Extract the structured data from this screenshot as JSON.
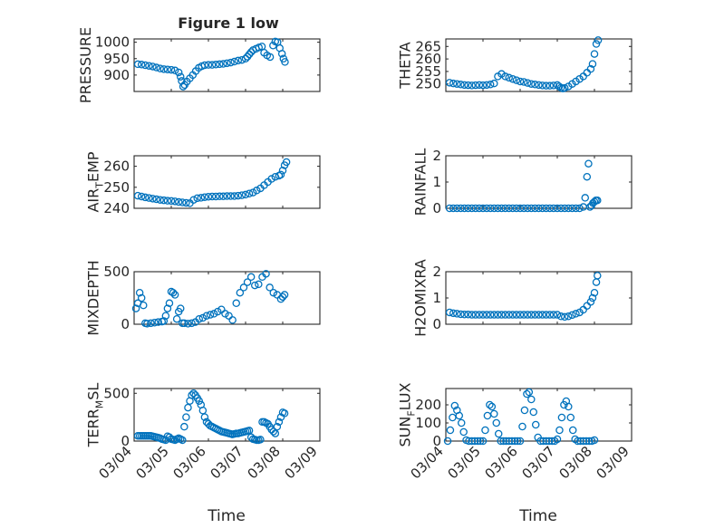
{
  "figure": {
    "title": "Figure 1 low",
    "xlabel": "Time",
    "marker_color": "#0072bd"
  },
  "chart_data": [
    {
      "type": "scatter",
      "name": "pressure",
      "ylabel": "PRESSURE",
      "ylim": [
        850,
        1010
      ],
      "yticks": [
        900,
        950,
        1000
      ],
      "xlim": [
        0,
        5
      ],
      "xticks": [
        0,
        1,
        2,
        3,
        4,
        5
      ],
      "xticklabels": [
        "03/04",
        "03/05",
        "03/06",
        "03/07",
        "03/08",
        "03/09"
      ],
      "show_xticklabels": false,
      "grid": true,
      "x": [
        0.1,
        0.2,
        0.3,
        0.4,
        0.5,
        0.6,
        0.7,
        0.8,
        0.9,
        1.0,
        1.1,
        1.2,
        1.25,
        1.28,
        1.32,
        1.36,
        1.42,
        1.5,
        1.58,
        1.66,
        1.74,
        1.82,
        1.9,
        2.0,
        2.1,
        2.2,
        2.3,
        2.4,
        2.5,
        2.6,
        2.7,
        2.8,
        2.9,
        3.0,
        3.05,
        3.1,
        3.15,
        3.2,
        3.28,
        3.36,
        3.44,
        3.5,
        3.58,
        3.66,
        3.74,
        3.8,
        3.86,
        3.92,
        3.98,
        4.02,
        4.06
      ],
      "y": [
        933,
        932,
        930,
        928,
        926,
        923,
        920,
        918,
        917,
        916,
        914,
        908,
        895,
        882,
        865,
        870,
        880,
        890,
        900,
        912,
        922,
        927,
        930,
        931,
        931,
        932,
        933,
        934,
        936,
        938,
        941,
        944,
        946,
        950,
        956,
        963,
        970,
        976,
        980,
        984,
        987,
        968,
        960,
        955,
        990,
        1002,
        1000,
        982,
        965,
        950,
        940
      ]
    },
    {
      "type": "scatter",
      "name": "theta",
      "ylabel": "THETA",
      "ylim": [
        247,
        268
      ],
      "yticks": [
        250,
        255,
        260,
        265
      ],
      "xlim": [
        0,
        5
      ],
      "xticks": [
        0,
        1,
        2,
        3,
        4,
        5
      ],
      "xticklabels": [
        "03/04",
        "03/05",
        "03/06",
        "03/07",
        "03/08",
        "03/09"
      ],
      "show_xticklabels": false,
      "grid": true,
      "x": [
        0.1,
        0.2,
        0.3,
        0.4,
        0.5,
        0.6,
        0.7,
        0.8,
        0.9,
        1.0,
        1.1,
        1.2,
        1.3,
        1.4,
        1.5,
        1.6,
        1.7,
        1.8,
        1.9,
        2.0,
        2.1,
        2.2,
        2.3,
        2.4,
        2.5,
        2.6,
        2.7,
        2.8,
        2.9,
        3.0,
        3.05,
        3.1,
        3.15,
        3.2,
        3.3,
        3.4,
        3.5,
        3.6,
        3.7,
        3.8,
        3.9,
        3.95,
        4.0,
        4.05,
        4.1
      ],
      "y": [
        250.5,
        250.2,
        250.0,
        249.8,
        249.6,
        249.5,
        249.4,
        249.5,
        249.6,
        249.5,
        249.6,
        249.8,
        250.2,
        253.0,
        254.0,
        253.0,
        252.5,
        252.0,
        251.5,
        251.0,
        250.8,
        250.4,
        250.0,
        249.8,
        249.6,
        249.4,
        249.3,
        249.3,
        249.4,
        249.6,
        249.0,
        248.5,
        248.2,
        248.4,
        249.0,
        250.0,
        251.0,
        252.0,
        253.0,
        254.5,
        256.0,
        258.0,
        262.0,
        266.0,
        267.5
      ]
    },
    {
      "type": "scatter",
      "name": "air_temp",
      "ylabel": "AIR",
      "ylabel_subscript": "T",
      "ylabel_suffix": "EMP",
      "ylim": [
        240,
        265
      ],
      "yticks": [
        240,
        250,
        260
      ],
      "xlim": [
        0,
        5
      ],
      "xticks": [
        0,
        1,
        2,
        3,
        4,
        5
      ],
      "xticklabels": [
        "03/04",
        "03/05",
        "03/06",
        "03/07",
        "03/08",
        "03/09"
      ],
      "show_xticklabels": false,
      "grid": true,
      "x": [
        0.1,
        0.2,
        0.3,
        0.4,
        0.5,
        0.6,
        0.7,
        0.8,
        0.9,
        1.0,
        1.1,
        1.2,
        1.3,
        1.4,
        1.5,
        1.6,
        1.7,
        1.8,
        1.9,
        2.0,
        2.1,
        2.2,
        2.3,
        2.4,
        2.5,
        2.6,
        2.7,
        2.8,
        2.9,
        3.0,
        3.1,
        3.2,
        3.3,
        3.4,
        3.5,
        3.6,
        3.7,
        3.8,
        3.9,
        3.95,
        4.0,
        4.05,
        4.1
      ],
      "y": [
        246.0,
        245.6,
        245.2,
        244.9,
        244.6,
        244.3,
        244.0,
        243.8,
        243.6,
        243.5,
        243.3,
        243.0,
        242.8,
        242.6,
        242.4,
        244.0,
        244.8,
        245.0,
        245.3,
        245.5,
        245.6,
        245.6,
        245.7,
        245.7,
        245.8,
        245.8,
        245.8,
        246.0,
        246.2,
        246.5,
        247.0,
        247.5,
        248.5,
        249.5,
        251.0,
        252.5,
        254.0,
        255.0,
        255.5,
        256.0,
        258.0,
        260.5,
        262.0
      ]
    },
    {
      "type": "scatter",
      "name": "rainfall",
      "ylabel": "RAINFALL",
      "ylim": [
        0,
        2
      ],
      "yticks": [
        0,
        1,
        2
      ],
      "xlim": [
        0,
        5
      ],
      "xticks": [
        0,
        1,
        2,
        3,
        4,
        5
      ],
      "xticklabels": [
        "03/04",
        "03/05",
        "03/06",
        "03/07",
        "03/08",
        "03/09"
      ],
      "show_xticklabels": false,
      "grid": true,
      "x": [
        0.1,
        0.2,
        0.3,
        0.4,
        0.5,
        0.6,
        0.7,
        0.8,
        0.9,
        1.0,
        1.1,
        1.2,
        1.3,
        1.4,
        1.5,
        1.6,
        1.7,
        1.8,
        1.9,
        2.0,
        2.1,
        2.2,
        2.3,
        2.4,
        2.5,
        2.6,
        2.7,
        2.8,
        2.9,
        3.0,
        3.1,
        3.2,
        3.3,
        3.4,
        3.5,
        3.6,
        3.7,
        3.75,
        3.8,
        3.84,
        3.88,
        3.92,
        3.96,
        4.0,
        4.04,
        4.08
      ],
      "y": [
        0,
        0,
        0,
        0,
        0,
        0,
        0,
        0,
        0,
        0,
        0,
        0,
        0,
        0,
        0,
        0,
        0,
        0,
        0,
        0,
        0,
        0,
        0,
        0,
        0,
        0,
        0,
        0,
        0,
        0,
        0,
        0,
        0,
        0,
        0,
        0,
        0.05,
        0.4,
        1.2,
        1.7,
        0.05,
        0.1,
        0.2,
        0.25,
        0.3,
        0.3
      ]
    },
    {
      "type": "scatter",
      "name": "mixdepth",
      "ylabel": "MIXDEPTH",
      "ylim": [
        0,
        500
      ],
      "yticks": [
        0,
        500
      ],
      "xlim": [
        0,
        5
      ],
      "xticks": [
        0,
        1,
        2,
        3,
        4,
        5
      ],
      "xticklabels": [
        "03/04",
        "03/05",
        "03/06",
        "03/07",
        "03/08",
        "03/09"
      ],
      "show_xticklabels": false,
      "grid": true,
      "x": [
        0.05,
        0.1,
        0.15,
        0.2,
        0.25,
        0.3,
        0.35,
        0.45,
        0.55,
        0.65,
        0.75,
        0.8,
        0.85,
        0.9,
        0.95,
        1.0,
        1.05,
        1.1,
        1.15,
        1.2,
        1.25,
        1.3,
        1.35,
        1.45,
        1.55,
        1.65,
        1.75,
        1.85,
        1.95,
        2.05,
        2.15,
        2.25,
        2.35,
        2.45,
        2.55,
        2.65,
        2.75,
        2.85,
        2.95,
        3.05,
        3.15,
        3.25,
        3.35,
        3.45,
        3.55,
        3.65,
        3.75,
        3.85,
        3.95,
        4.0,
        4.05
      ],
      "y": [
        150,
        200,
        300,
        250,
        180,
        10,
        5,
        10,
        15,
        20,
        25,
        30,
        80,
        150,
        200,
        310,
        300,
        280,
        50,
        120,
        150,
        10,
        10,
        5,
        10,
        20,
        50,
        60,
        80,
        90,
        100,
        120,
        140,
        100,
        80,
        40,
        200,
        300,
        350,
        400,
        450,
        370,
        380,
        450,
        480,
        350,
        300,
        280,
        240,
        260,
        280
      ]
    },
    {
      "type": "scatter",
      "name": "h2omixra",
      "ylabel": "H2OMIXRA",
      "ylim": [
        0,
        2
      ],
      "yticks": [
        0,
        1,
        2
      ],
      "xlim": [
        0,
        5
      ],
      "xticks": [
        0,
        1,
        2,
        3,
        4,
        5
      ],
      "xticklabels": [
        "03/04",
        "03/05",
        "03/06",
        "03/07",
        "03/08",
        "03/09"
      ],
      "show_xticklabels": false,
      "grid": true,
      "x": [
        0.1,
        0.2,
        0.3,
        0.4,
        0.5,
        0.6,
        0.7,
        0.8,
        0.9,
        1.0,
        1.1,
        1.2,
        1.3,
        1.4,
        1.5,
        1.6,
        1.7,
        1.8,
        1.9,
        2.0,
        2.1,
        2.2,
        2.3,
        2.4,
        2.5,
        2.6,
        2.7,
        2.8,
        2.9,
        3.0,
        3.1,
        3.2,
        3.3,
        3.4,
        3.5,
        3.6,
        3.7,
        3.8,
        3.9,
        3.95,
        4.0,
        4.05,
        4.08
      ],
      "y": [
        0.45,
        0.42,
        0.4,
        0.38,
        0.37,
        0.37,
        0.36,
        0.36,
        0.36,
        0.36,
        0.36,
        0.36,
        0.36,
        0.36,
        0.36,
        0.36,
        0.36,
        0.36,
        0.36,
        0.36,
        0.36,
        0.36,
        0.36,
        0.36,
        0.36,
        0.36,
        0.36,
        0.36,
        0.36,
        0.36,
        0.3,
        0.28,
        0.3,
        0.35,
        0.4,
        0.45,
        0.55,
        0.7,
        0.85,
        1.0,
        1.2,
        1.6,
        1.85
      ]
    },
    {
      "type": "scatter",
      "name": "terr_msl",
      "ylabel": "TERR",
      "ylabel_subscript": "M",
      "ylabel_suffix": "SL",
      "ylim": [
        0,
        550
      ],
      "yticks": [
        0,
        500
      ],
      "xlim": [
        0,
        5
      ],
      "xticks": [
        0,
        1,
        2,
        3,
        4,
        5
      ],
      "xticklabels": [
        "03/04",
        "03/05",
        "03/06",
        "03/07",
        "03/08",
        "03/09"
      ],
      "show_xticklabels": true,
      "grid": true,
      "x": [
        0.1,
        0.15,
        0.2,
        0.25,
        0.3,
        0.35,
        0.4,
        0.45,
        0.5,
        0.55,
        0.6,
        0.65,
        0.7,
        0.75,
        0.8,
        0.85,
        0.9,
        0.95,
        1.0,
        1.05,
        1.1,
        1.15,
        1.2,
        1.25,
        1.3,
        1.35,
        1.4,
        1.45,
        1.5,
        1.55,
        1.6,
        1.65,
        1.7,
        1.75,
        1.8,
        1.85,
        1.9,
        1.95,
        2.0,
        2.05,
        2.1,
        2.15,
        2.2,
        2.25,
        2.3,
        2.35,
        2.4,
        2.45,
        2.5,
        2.55,
        2.6,
        2.65,
        2.7,
        2.75,
        2.8,
        2.85,
        2.9,
        2.95,
        3.0,
        3.05,
        3.1,
        3.15,
        3.2,
        3.25,
        3.3,
        3.35,
        3.4,
        3.45,
        3.5,
        3.55,
        3.6,
        3.65,
        3.7,
        3.75,
        3.8,
        3.85,
        3.9,
        3.95,
        4.0,
        4.05
      ],
      "y": [
        55,
        55,
        55,
        55,
        55,
        55,
        55,
        55,
        50,
        45,
        40,
        35,
        30,
        20,
        15,
        10,
        50,
        40,
        20,
        15,
        10,
        20,
        30,
        20,
        10,
        150,
        250,
        350,
        420,
        480,
        500,
        480,
        450,
        420,
        380,
        320,
        250,
        200,
        180,
        160,
        150,
        140,
        130,
        120,
        110,
        100,
        95,
        90,
        85,
        80,
        75,
        70,
        75,
        80,
        80,
        85,
        90,
        95,
        100,
        105,
        110,
        40,
        20,
        15,
        10,
        10,
        15,
        200,
        200,
        190,
        180,
        150,
        120,
        100,
        80,
        150,
        200,
        250,
        300,
        290
      ]
    },
    {
      "type": "scatter",
      "name": "sun_flux",
      "ylabel": "SUN",
      "ylabel_subscript": "F",
      "ylabel_suffix": "LUX",
      "ylim": [
        0,
        290
      ],
      "yticks": [
        0,
        100,
        200
      ],
      "xlim": [
        0,
        5
      ],
      "xticks": [
        0,
        1,
        2,
        3,
        4,
        5
      ],
      "xticklabels": [
        "03/04",
        "03/05",
        "03/06",
        "03/07",
        "03/08",
        "03/09"
      ],
      "show_xticklabels": true,
      "grid": true,
      "x": [
        0.05,
        0.12,
        0.18,
        0.24,
        0.3,
        0.36,
        0.42,
        0.48,
        0.55,
        0.62,
        0.7,
        0.78,
        0.86,
        0.93,
        1.0,
        1.06,
        1.12,
        1.18,
        1.24,
        1.3,
        1.36,
        1.42,
        1.48,
        1.55,
        1.62,
        1.7,
        1.78,
        1.86,
        1.93,
        2.0,
        2.06,
        2.12,
        2.18,
        2.24,
        2.3,
        2.36,
        2.42,
        2.48,
        2.55,
        2.62,
        2.7,
        2.78,
        2.86,
        2.93,
        3.0,
        3.06,
        3.12,
        3.18,
        3.24,
        3.3,
        3.36,
        3.42,
        3.48,
        3.55,
        3.62,
        3.7,
        3.78,
        3.86,
        3.93,
        4.0
      ],
      "y": [
        0,
        60,
        130,
        195,
        170,
        140,
        100,
        50,
        5,
        0,
        0,
        0,
        0,
        0,
        0,
        60,
        140,
        200,
        190,
        150,
        100,
        40,
        0,
        0,
        0,
        0,
        0,
        0,
        0,
        0,
        80,
        170,
        260,
        270,
        230,
        160,
        90,
        20,
        0,
        0,
        0,
        0,
        0,
        0,
        10,
        60,
        130,
        200,
        220,
        190,
        130,
        60,
        10,
        0,
        0,
        0,
        0,
        0,
        0,
        5
      ]
    }
  ]
}
